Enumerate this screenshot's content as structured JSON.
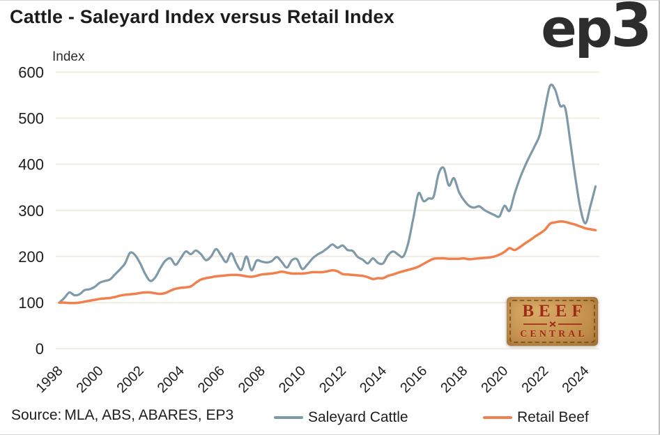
{
  "title": "Cattle - Saleyard Index versus Retail Index",
  "logo": {
    "part1": "ep",
    "part2": "3"
  },
  "source": {
    "label": "Source:",
    "text": "MLA, ABS, ABARES, EP3"
  },
  "watermark": {
    "line1": "BEEF",
    "line2": "CENTRAL"
  },
  "colors": {
    "saleyard": "#7e99a8",
    "retail": "#f0814f",
    "gridline": "#f0ecdf",
    "axis_text": "#1d1d1d",
    "patch_bg": "#c6934f",
    "patch_text": "#9e2b15"
  },
  "chart_data": {
    "type": "line",
    "title": "Cattle - Saleyard Index versus Retail Index",
    "xlabel": "",
    "ylabel": "Index",
    "ylim": [
      0,
      600
    ],
    "yticks": [
      0,
      100,
      200,
      300,
      400,
      500,
      600
    ],
    "xticks": [
      1998,
      2000,
      2002,
      2004,
      2006,
      2008,
      2010,
      2012,
      2014,
      2016,
      2018,
      2020,
      2022,
      2024
    ],
    "grid": true,
    "legend_position": "bottom",
    "x_start": 1998.0,
    "x_step": 0.25,
    "x_end": 2024.5,
    "series": [
      {
        "name": "Saleyard Cattle",
        "color": "#7e99a8",
        "values": [
          100,
          110,
          122,
          116,
          118,
          127,
          129,
          134,
          143,
          147,
          150,
          161,
          172,
          185,
          208,
          203,
          185,
          162,
          147,
          155,
          175,
          191,
          196,
          182,
          196,
          211,
          205,
          213,
          205,
          192,
          200,
          216,
          202,
          188,
          207,
          185,
          171,
          200,
          170,
          191,
          189,
          187,
          190,
          199,
          188,
          176,
          192,
          194,
          173,
          182,
          195,
          204,
          210,
          218,
          226,
          219,
          224,
          214,
          212,
          199,
          193,
          185,
          196,
          186,
          185,
          203,
          211,
          204,
          200,
          230,
          284,
          337,
          320,
          326,
          330,
          380,
          392,
          354,
          370,
          340,
          322,
          310,
          306,
          309,
          301,
          295,
          290,
          287,
          310,
          299,
          336,
          368,
          395,
          418,
          440,
          465,
          520,
          570,
          562,
          527,
          522,
          450,
          372,
          305,
          272,
          310,
          352
        ]
      },
      {
        "name": "Retail Beef",
        "color": "#f0814f",
        "values": [
          100,
          100,
          99,
          99,
          100,
          102,
          104,
          106,
          108,
          109,
          110,
          112,
          115,
          117,
          118,
          119,
          121,
          122,
          122,
          120,
          119,
          121,
          126,
          130,
          132,
          133,
          135,
          143,
          150,
          153,
          155,
          157,
          158,
          159,
          160,
          160,
          159,
          157,
          156,
          158,
          161,
          162,
          163,
          165,
          167,
          165,
          163,
          163,
          163,
          164,
          166,
          166,
          166,
          168,
          170,
          168,
          162,
          161,
          160,
          159,
          158,
          155,
          151,
          153,
          153,
          158,
          161,
          165,
          168,
          171,
          174,
          178,
          184,
          190,
          195,
          196,
          196,
          195,
          195,
          195,
          196,
          194,
          195,
          196,
          197,
          198,
          200,
          204,
          210,
          218,
          214,
          220,
          228,
          235,
          243,
          250,
          258,
          271,
          274,
          276,
          275,
          272,
          269,
          265,
          261,
          259,
          257
        ]
      }
    ]
  }
}
